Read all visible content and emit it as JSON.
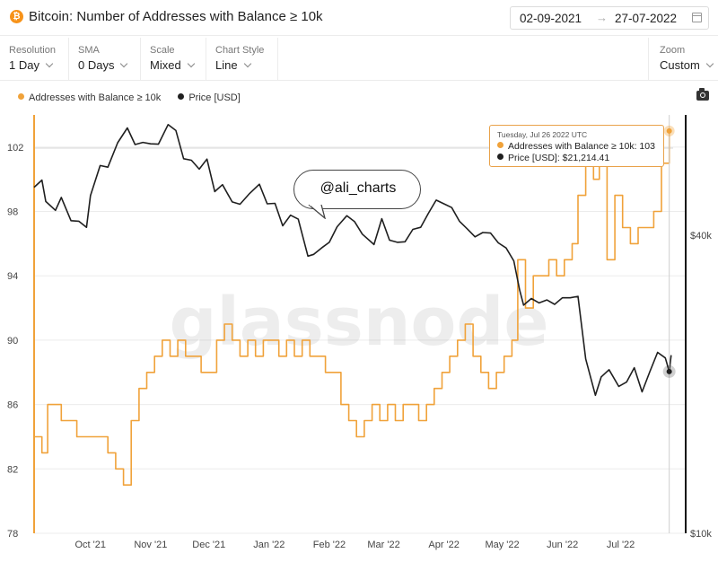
{
  "header": {
    "asset_icon": "bitcoin-icon",
    "asset_symbol": "₿",
    "title": "Bitcoin: Number of Addresses with Balance ≥ 10k",
    "date_from": "02-09-2021",
    "date_to": "27-07-2022",
    "date_separator": "→"
  },
  "controls": {
    "resolution": {
      "label": "Resolution",
      "value": "1 Day"
    },
    "sma": {
      "label": "SMA",
      "value": "0 Days"
    },
    "scale": {
      "label": "Scale",
      "value": "Mixed"
    },
    "chart_style": {
      "label": "Chart Style",
      "value": "Line"
    },
    "zoom": {
      "label": "Zoom",
      "value": "Custom"
    }
  },
  "legend": {
    "addresses": "Addresses with Balance ≥ 10k",
    "price": "Price [USD]"
  },
  "colors": {
    "addresses": "#f0a23a",
    "price": "#1f1f1f",
    "grid": "#ececec"
  },
  "watermark": "glassnode",
  "annotation": "@ali_charts",
  "tooltip": {
    "date": "Tuesday, Jul 26 2022 UTC",
    "addresses_label": "Addresses with Balance ≥ 10k: 103",
    "price_label": "Price [USD]: $21,214.41"
  },
  "chart_data": {
    "type": "line",
    "title": "Bitcoin: Number of Addresses with Balance ≥ 10k",
    "x_tick_labels": [
      "Oct '21",
      "Nov '21",
      "Dec '21",
      "Jan '22",
      "Feb '22",
      "Mar '22",
      "Apr '22",
      "May '22",
      "Jun '22",
      "Jul '22"
    ],
    "y_left": {
      "range": [
        78,
        104
      ],
      "ticks": [
        78,
        82,
        86,
        90,
        94,
        98,
        102
      ]
    },
    "y_right": {
      "scale": "log",
      "range": [
        10000,
        70000
      ],
      "ticks": [
        10000,
        40000
      ],
      "tick_labels": [
        "$10k",
        "$40k"
      ]
    },
    "grid": true,
    "legend_position": "top-left",
    "series": [
      {
        "name": "Addresses with Balance ≥ 10k",
        "axis": "left",
        "points": [
          [
            "2021-09-02",
            84
          ],
          [
            "2021-09-06",
            83
          ],
          [
            "2021-09-09",
            86
          ],
          [
            "2021-09-13",
            86
          ],
          [
            "2021-09-16",
            85
          ],
          [
            "2021-09-20",
            85
          ],
          [
            "2021-09-24",
            84
          ],
          [
            "2021-09-28",
            84
          ],
          [
            "2021-10-02",
            84
          ],
          [
            "2021-10-06",
            84
          ],
          [
            "2021-10-10",
            83
          ],
          [
            "2021-10-14",
            82
          ],
          [
            "2021-10-18",
            81
          ],
          [
            "2021-10-22",
            85
          ],
          [
            "2021-10-26",
            87
          ],
          [
            "2021-10-30",
            88
          ],
          [
            "2021-11-03",
            89
          ],
          [
            "2021-11-07",
            90
          ],
          [
            "2021-11-11",
            89
          ],
          [
            "2021-11-15",
            90
          ],
          [
            "2021-11-19",
            89
          ],
          [
            "2021-11-23",
            89
          ],
          [
            "2021-11-27",
            88
          ],
          [
            "2021-12-01",
            88
          ],
          [
            "2021-12-05",
            90
          ],
          [
            "2021-12-09",
            91
          ],
          [
            "2021-12-13",
            90
          ],
          [
            "2021-12-17",
            89
          ],
          [
            "2021-12-21",
            90
          ],
          [
            "2021-12-25",
            89
          ],
          [
            "2021-12-29",
            90
          ],
          [
            "2022-01-02",
            90
          ],
          [
            "2022-01-06",
            89
          ],
          [
            "2022-01-10",
            90
          ],
          [
            "2022-01-14",
            89
          ],
          [
            "2022-01-18",
            90
          ],
          [
            "2022-01-22",
            89
          ],
          [
            "2022-01-26",
            89
          ],
          [
            "2022-01-30",
            88
          ],
          [
            "2022-02-03",
            88
          ],
          [
            "2022-02-07",
            86
          ],
          [
            "2022-02-11",
            85
          ],
          [
            "2022-02-15",
            84
          ],
          [
            "2022-02-19",
            85
          ],
          [
            "2022-02-23",
            86
          ],
          [
            "2022-02-27",
            85
          ],
          [
            "2022-03-03",
            86
          ],
          [
            "2022-03-07",
            85
          ],
          [
            "2022-03-11",
            86
          ],
          [
            "2022-03-15",
            86
          ],
          [
            "2022-03-19",
            85
          ],
          [
            "2022-03-23",
            86
          ],
          [
            "2022-03-27",
            87
          ],
          [
            "2022-03-31",
            88
          ],
          [
            "2022-04-04",
            89
          ],
          [
            "2022-04-08",
            90
          ],
          [
            "2022-04-12",
            91
          ],
          [
            "2022-04-16",
            89
          ],
          [
            "2022-04-20",
            88
          ],
          [
            "2022-04-24",
            87
          ],
          [
            "2022-04-28",
            88
          ],
          [
            "2022-05-02",
            89
          ],
          [
            "2022-05-06",
            90
          ],
          [
            "2022-05-09",
            95
          ],
          [
            "2022-05-13",
            92
          ],
          [
            "2022-05-17",
            94
          ],
          [
            "2022-05-21",
            94
          ],
          [
            "2022-05-25",
            95
          ],
          [
            "2022-05-29",
            94
          ],
          [
            "2022-06-02",
            95
          ],
          [
            "2022-06-06",
            96
          ],
          [
            "2022-06-09",
            99
          ],
          [
            "2022-06-13",
            101
          ],
          [
            "2022-06-17",
            100
          ],
          [
            "2022-06-20",
            102
          ],
          [
            "2022-06-24",
            95
          ],
          [
            "2022-06-28",
            99
          ],
          [
            "2022-07-02",
            97
          ],
          [
            "2022-07-06",
            96
          ],
          [
            "2022-07-10",
            97
          ],
          [
            "2022-07-14",
            97
          ],
          [
            "2022-07-18",
            98
          ],
          [
            "2022-07-22",
            101
          ],
          [
            "2022-07-26",
            103
          ]
        ]
      },
      {
        "name": "Price [USD]",
        "axis": "right",
        "points": [
          [
            "2021-09-02",
            50000
          ],
          [
            "2021-09-06",
            51700
          ],
          [
            "2021-09-08",
            46800
          ],
          [
            "2021-09-13",
            44900
          ],
          [
            "2021-09-16",
            47700
          ],
          [
            "2021-09-21",
            42800
          ],
          [
            "2021-09-25",
            42700
          ],
          [
            "2021-09-29",
            41500
          ],
          [
            "2021-10-01",
            48100
          ],
          [
            "2021-10-06",
            55300
          ],
          [
            "2021-10-10",
            54900
          ],
          [
            "2021-10-15",
            61500
          ],
          [
            "2021-10-20",
            65900
          ],
          [
            "2021-10-24",
            61000
          ],
          [
            "2021-10-28",
            61600
          ],
          [
            "2021-11-01",
            61200
          ],
          [
            "2021-11-05",
            61100
          ],
          [
            "2021-11-10",
            66900
          ],
          [
            "2021-11-14",
            65100
          ],
          [
            "2021-11-18",
            57100
          ],
          [
            "2021-11-22",
            56700
          ],
          [
            "2021-11-26",
            54400
          ],
          [
            "2021-11-30",
            57000
          ],
          [
            "2021-12-04",
            49000
          ],
          [
            "2021-12-08",
            50600
          ],
          [
            "2021-12-13",
            46700
          ],
          [
            "2021-12-17",
            46200
          ],
          [
            "2021-12-22",
            48600
          ],
          [
            "2021-12-27",
            50700
          ],
          [
            "2021-12-31",
            46300
          ],
          [
            "2022-01-04",
            46400
          ],
          [
            "2022-01-08",
            41800
          ],
          [
            "2022-01-12",
            43900
          ],
          [
            "2022-01-16",
            43100
          ],
          [
            "2022-01-21",
            36300
          ],
          [
            "2022-01-24",
            36600
          ],
          [
            "2022-01-28",
            37700
          ],
          [
            "2022-02-01",
            38700
          ],
          [
            "2022-02-05",
            41600
          ],
          [
            "2022-02-10",
            43800
          ],
          [
            "2022-02-14",
            42600
          ],
          [
            "2022-02-18",
            40200
          ],
          [
            "2022-02-24",
            38300
          ],
          [
            "2022-02-28",
            43200
          ],
          [
            "2022-03-04",
            39100
          ],
          [
            "2022-03-08",
            38700
          ],
          [
            "2022-03-12",
            38800
          ],
          [
            "2022-03-16",
            41100
          ],
          [
            "2022-03-20",
            41500
          ],
          [
            "2022-03-24",
            44300
          ],
          [
            "2022-03-28",
            47100
          ],
          [
            "2022-04-01",
            46300
          ],
          [
            "2022-04-05",
            45500
          ],
          [
            "2022-04-09",
            42700
          ],
          [
            "2022-04-13",
            41200
          ],
          [
            "2022-04-17",
            39700
          ],
          [
            "2022-04-21",
            40500
          ],
          [
            "2022-04-25",
            40400
          ],
          [
            "2022-04-29",
            38600
          ],
          [
            "2022-05-03",
            37700
          ],
          [
            "2022-05-07",
            35500
          ],
          [
            "2022-05-10",
            31000
          ],
          [
            "2022-05-12",
            28900
          ],
          [
            "2022-05-16",
            29800
          ],
          [
            "2022-05-20",
            29200
          ],
          [
            "2022-05-24",
            29600
          ],
          [
            "2022-05-28",
            29000
          ],
          [
            "2022-06-01",
            29900
          ],
          [
            "2022-06-05",
            29900
          ],
          [
            "2022-06-09",
            30100
          ],
          [
            "2022-06-13",
            22500
          ],
          [
            "2022-06-18",
            19000
          ],
          [
            "2022-06-21",
            20700
          ],
          [
            "2022-06-25",
            21400
          ],
          [
            "2022-06-30",
            19800
          ],
          [
            "2022-07-04",
            20200
          ],
          [
            "2022-07-08",
            21600
          ],
          [
            "2022-07-12",
            19300
          ],
          [
            "2022-07-16",
            21200
          ],
          [
            "2022-07-20",
            23200
          ],
          [
            "2022-07-24",
            22600
          ],
          [
            "2022-07-26",
            21214.41
          ],
          [
            "2022-07-27",
            22900
          ]
        ]
      }
    ],
    "highlight": {
      "date": "2022-07-26",
      "addresses": 103,
      "price": 21214.41
    }
  }
}
